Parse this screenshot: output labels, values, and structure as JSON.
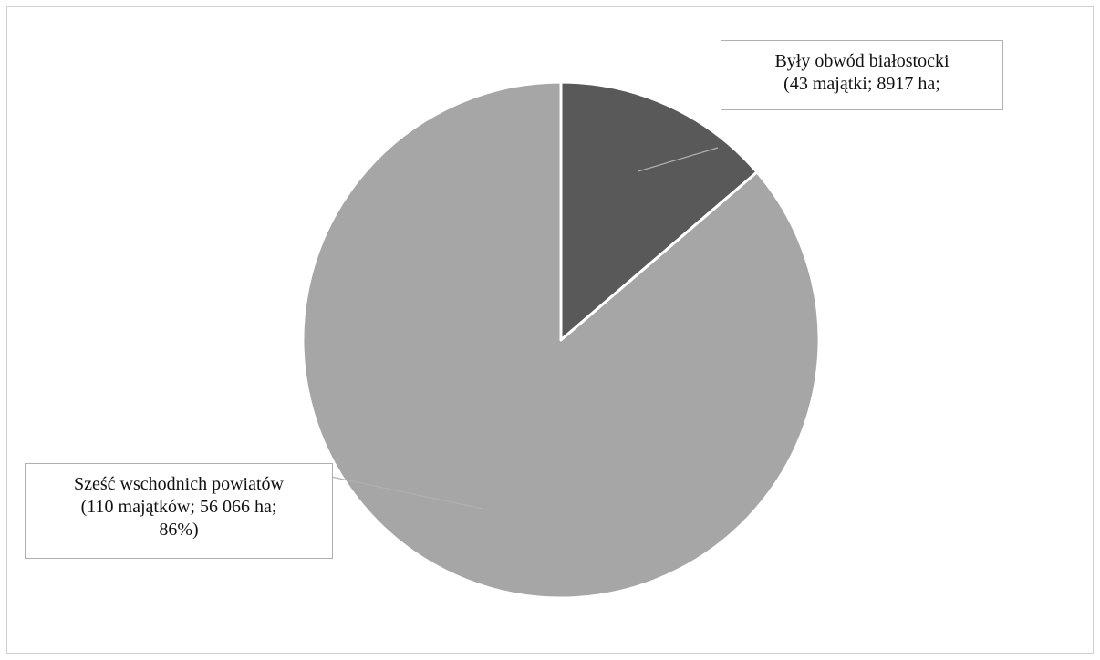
{
  "chart_data": {
    "type": "pie",
    "title": "",
    "start_angle_deg": 0,
    "direction": "clockwise",
    "slices": [
      {
        "value": 8917,
        "color": "#595959",
        "label_lines": [
          "Były obwód białostocki",
          "(43 majątki; 8917 ha;"
        ]
      },
      {
        "value": 56066,
        "color": "#a6a6a6",
        "label_lines": [
          "Sześć wschodnich powiatów",
          "(110 majątków; 56 066 ha;",
          "86%)"
        ]
      }
    ],
    "slice_border_color": "#ffffff",
    "callout_border_color": "#b0b0b0"
  }
}
